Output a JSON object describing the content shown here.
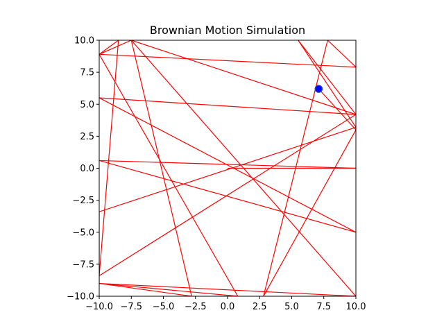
{
  "chart_data": {
    "type": "line",
    "title": "Brownian Motion Simulation",
    "xlabel": "",
    "ylabel": "",
    "xlim": [
      -10,
      10
    ],
    "ylim": [
      -10,
      10
    ],
    "xticks": [
      -10.0,
      -7.5,
      -5.0,
      -2.5,
      0.0,
      2.5,
      5.0,
      7.5,
      10.0
    ],
    "yticks": [
      -10.0,
      -7.5,
      -5.0,
      -2.5,
      0.0,
      2.5,
      5.0,
      7.5,
      10.0
    ],
    "xtick_labels": [
      "−10.0",
      "−7.5",
      "−5.0",
      "−2.5",
      "0.0",
      "2.5",
      "5.0",
      "7.5",
      "10.0"
    ],
    "ytick_labels": [
      "−10.0",
      "−7.5",
      "−5.0",
      "−2.5",
      "0.0",
      "2.5",
      "5.0",
      "7.5",
      "10.0"
    ],
    "grid": false,
    "series": [
      {
        "color": "#ff0000",
        "x": [
          0,
          10,
          -10,
          10,
          -10,
          10,
          -7.5,
          -2.8,
          -10,
          10,
          -7.5,
          -10,
          -8.5,
          -10,
          10,
          5.5,
          10,
          -10,
          -10,
          0.8,
          -10,
          10,
          7.8,
          2.8,
          10,
          7.1
        ],
        "y": [
          0,
          0,
          0.6,
          -5.0,
          5.5,
          4.2,
          10,
          -10,
          -9.0,
          -10,
          10,
          8.9,
          10,
          -8.4,
          4.2,
          10,
          3.2,
          -3.4,
          -9.0,
          -10,
          8.9,
          7.9,
          10,
          -10,
          3.0,
          6.2
        ]
      }
    ],
    "markers": [
      {
        "x": 7.1,
        "y": 6.2,
        "color": "#0000ff",
        "edge_color": "#1f3fbf"
      }
    ]
  }
}
